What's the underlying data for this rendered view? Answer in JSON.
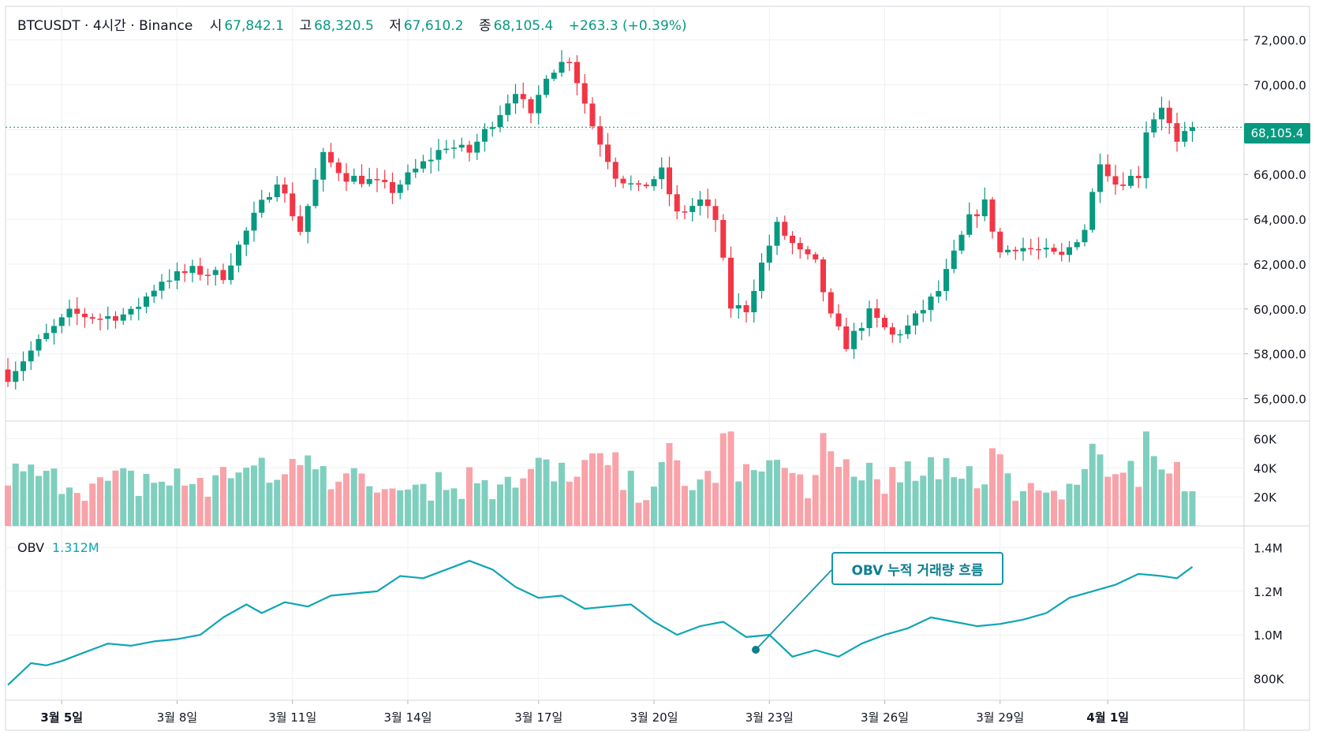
{
  "header": {
    "symbol": "BTCUSDT · 4시간 · Binance",
    "open_label": "시",
    "open": "67,842.1",
    "high_label": "고",
    "high": "68,320.5",
    "low_label": "저",
    "low": "67,610.2",
    "close_label": "종",
    "close": "68,105.4",
    "change": "+263.3 (+0.39%)"
  },
  "last_price": "68,105.4",
  "price_axis_labels": [
    "72,000.0",
    "70,000.0",
    "68,000.0",
    "66,000.0",
    "64,000.0",
    "62,000.0",
    "60,000.0",
    "58,000.0",
    "56,000.0"
  ],
  "volume_axis_labels": [
    "60K",
    "40K",
    "20K"
  ],
  "obv": {
    "name": "OBV",
    "value": "1.312M",
    "axis_labels": [
      "1.4M",
      "1.2M",
      "1.0M",
      "800K"
    ]
  },
  "annotation": "OBV 누적 거래량 흐름",
  "date_labels": [
    "3월 5일",
    "3월 8일",
    "3월 11일",
    "3월 14일",
    "3월 17일",
    "3월 20일",
    "3월 23일",
    "3월 26일",
    "3월 29일",
    "4월 1일"
  ],
  "colors": {
    "up": "#089981",
    "down": "#f23645",
    "obv_line": "#0ea5b5",
    "grid": "#eef0f3"
  },
  "chart_data": {
    "type": "candlestick",
    "price_range": [
      55000,
      73500
    ],
    "volume_range": [
      0,
      70000
    ],
    "obv_range": [
      700000,
      1500000
    ],
    "anchors": [
      {
        "i": 0,
        "c": 57000
      },
      {
        "i": 4,
        "c": 58500
      },
      {
        "i": 8,
        "c": 59800
      },
      {
        "i": 12,
        "c": 59600
      },
      {
        "i": 16,
        "c": 59800
      },
      {
        "i": 20,
        "c": 61300
      },
      {
        "i": 24,
        "c": 61700
      },
      {
        "i": 28,
        "c": 61500
      },
      {
        "i": 32,
        "c": 64100
      },
      {
        "i": 35,
        "c": 65800
      },
      {
        "i": 38,
        "c": 63500
      },
      {
        "i": 41,
        "c": 66800
      },
      {
        "i": 44,
        "c": 65900
      },
      {
        "i": 47,
        "c": 65700
      },
      {
        "i": 50,
        "c": 65300
      },
      {
        "i": 53,
        "c": 66200
      },
      {
        "i": 57,
        "c": 67300
      },
      {
        "i": 60,
        "c": 67000
      },
      {
        "i": 64,
        "c": 68800
      },
      {
        "i": 66,
        "c": 69800
      },
      {
        "i": 68,
        "c": 68500
      },
      {
        "i": 70,
        "c": 70500
      },
      {
        "i": 73,
        "c": 71200
      },
      {
        "i": 76,
        "c": 68200
      },
      {
        "i": 79,
        "c": 66000
      },
      {
        "i": 82,
        "c": 65300
      },
      {
        "i": 85,
        "c": 66100
      },
      {
        "i": 87,
        "c": 64200
      },
      {
        "i": 90,
        "c": 64800
      },
      {
        "i": 92,
        "c": 64000
      },
      {
        "i": 94,
        "c": 60100
      },
      {
        "i": 96,
        "c": 60000
      },
      {
        "i": 98,
        "c": 62000
      },
      {
        "i": 100,
        "c": 63700
      },
      {
        "i": 103,
        "c": 62500
      },
      {
        "i": 105,
        "c": 62000
      },
      {
        "i": 107,
        "c": 59600
      },
      {
        "i": 109,
        "c": 58400
      },
      {
        "i": 112,
        "c": 59800
      },
      {
        "i": 115,
        "c": 58800
      },
      {
        "i": 117,
        "c": 59200
      },
      {
        "i": 119,
        "c": 60000
      },
      {
        "i": 121,
        "c": 60800
      },
      {
        "i": 123,
        "c": 62400
      },
      {
        "i": 125,
        "c": 64000
      },
      {
        "i": 127,
        "c": 64700
      },
      {
        "i": 129,
        "c": 62500
      },
      {
        "i": 131,
        "c": 62800
      },
      {
        "i": 134,
        "c": 62600
      },
      {
        "i": 137,
        "c": 62300
      },
      {
        "i": 140,
        "c": 63600
      },
      {
        "i": 142,
        "c": 66700
      },
      {
        "i": 144,
        "c": 65600
      },
      {
        "i": 147,
        "c": 66000
      },
      {
        "i": 148,
        "c": 68000
      },
      {
        "i": 150,
        "c": 69100
      },
      {
        "i": 152,
        "c": 67300
      },
      {
        "i": 154,
        "c": 68105
      }
    ],
    "obv_points": [
      [
        0,
        770000
      ],
      [
        3,
        870000
      ],
      [
        5,
        860000
      ],
      [
        7,
        880000
      ],
      [
        10,
        920000
      ],
      [
        13,
        960000
      ],
      [
        16,
        950000
      ],
      [
        19,
        970000
      ],
      [
        22,
        980000
      ],
      [
        25,
        1000000
      ],
      [
        28,
        1080000
      ],
      [
        31,
        1140000
      ],
      [
        33,
        1100000
      ],
      [
        36,
        1150000
      ],
      [
        39,
        1130000
      ],
      [
        42,
        1180000
      ],
      [
        45,
        1190000
      ],
      [
        48,
        1200000
      ],
      [
        51,
        1270000
      ],
      [
        54,
        1260000
      ],
      [
        57,
        1300000
      ],
      [
        60,
        1340000
      ],
      [
        63,
        1300000
      ],
      [
        66,
        1220000
      ],
      [
        69,
        1170000
      ],
      [
        72,
        1180000
      ],
      [
        75,
        1120000
      ],
      [
        78,
        1130000
      ],
      [
        81,
        1140000
      ],
      [
        84,
        1060000
      ],
      [
        87,
        1000000
      ],
      [
        90,
        1040000
      ],
      [
        93,
        1060000
      ],
      [
        96,
        990000
      ],
      [
        99,
        1000000
      ],
      [
        102,
        900000
      ],
      [
        105,
        930000
      ],
      [
        108,
        900000
      ],
      [
        111,
        960000
      ],
      [
        114,
        1000000
      ],
      [
        117,
        1030000
      ],
      [
        120,
        1080000
      ],
      [
        123,
        1060000
      ],
      [
        126,
        1040000
      ],
      [
        129,
        1050000
      ],
      [
        132,
        1070000
      ],
      [
        135,
        1100000
      ],
      [
        138,
        1170000
      ],
      [
        141,
        1200000
      ],
      [
        144,
        1230000
      ],
      [
        147,
        1280000
      ],
      [
        150,
        1270000
      ],
      [
        152,
        1260000
      ],
      [
        154,
        1312000
      ]
    ],
    "candle_count": 155
  }
}
